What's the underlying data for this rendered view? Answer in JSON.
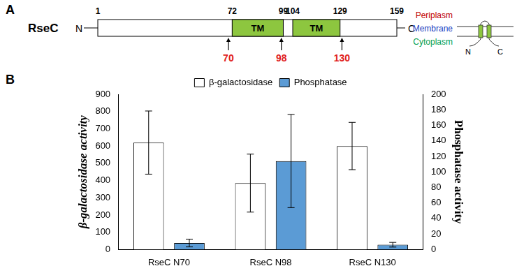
{
  "panel_a": {
    "label": "A",
    "protein": "RseC",
    "n_label": "N",
    "c_label": "C",
    "start": 1,
    "end": 159,
    "domains": [
      {
        "label": "TM",
        "start": 72,
        "end": 99
      },
      {
        "label": "TM",
        "start": 104,
        "end": 129
      }
    ],
    "fusion_sites": [
      70,
      98,
      130
    ],
    "compartments": [
      "Periplasm",
      "Membrane",
      "Cytoplasm"
    ],
    "topology": {
      "n_label": "N",
      "c_label": "C"
    }
  },
  "chart_data": {
    "panel_label": "B",
    "type": "bar",
    "categories": [
      "RseC N70",
      "RseC N98",
      "RseC N130"
    ],
    "series": [
      {
        "name": "β-galactosidase",
        "color": "#ffffff",
        "values": [
          620,
          385,
          600
        ],
        "errors": [
          183,
          168,
          137
        ]
      },
      {
        "name": "Phosphatase",
        "color": "#5b9bd5",
        "values": [
          8.4,
          114,
          6.2
        ],
        "errors": [
          5,
          60,
          3
        ],
        "axis": "y2"
      }
    ],
    "y_label": "β-galactosidase activity",
    "y2_label": "Phosphatase activity",
    "ylim": [
      0,
      900
    ],
    "yticks": [
      0,
      100,
      200,
      300,
      400,
      500,
      600,
      700,
      800,
      900
    ],
    "y2lim": [
      0,
      200
    ],
    "y2ticks": [
      0,
      20,
      40,
      60,
      80,
      100,
      120,
      140,
      160,
      180,
      200
    ],
    "grid": false,
    "legend": "top"
  }
}
